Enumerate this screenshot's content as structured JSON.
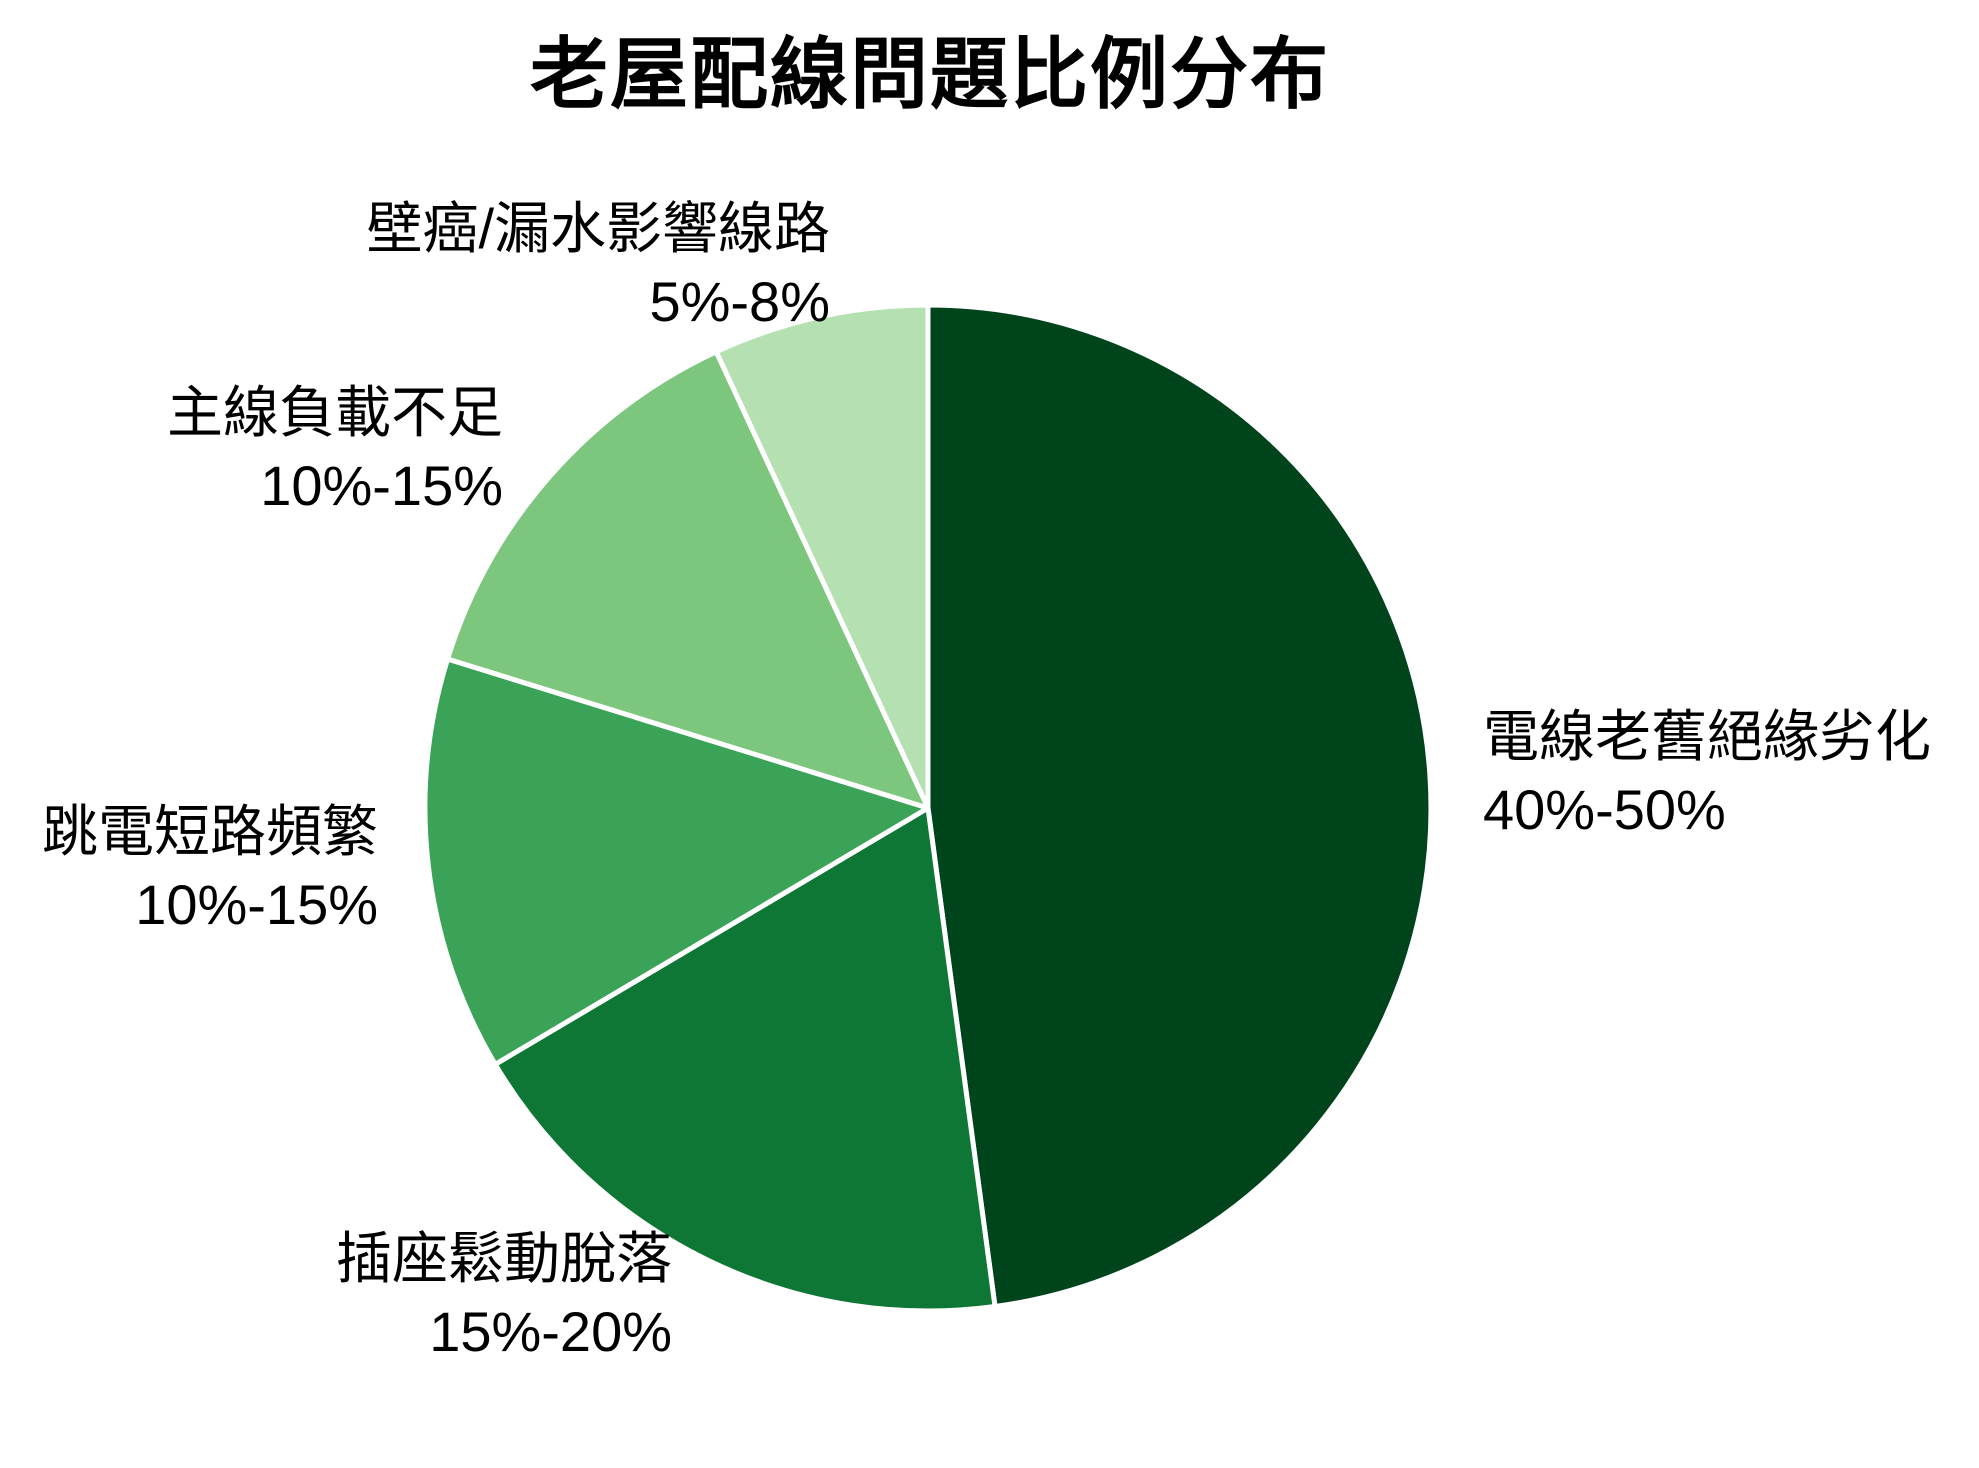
{
  "chart_data": {
    "type": "pie",
    "title": "老屋配線問題比例分布",
    "legend_position": "none",
    "label_style": "outside",
    "start_angle": "12-oclock",
    "direction": "clockwise",
    "background_color": "#ffffff",
    "divider_color": "#ffffff",
    "slices": [
      {
        "label": "電線老舊絕緣劣化",
        "range": "40%-50%",
        "value": 45,
        "color": "#00441C"
      },
      {
        "label": "插座鬆動脫落",
        "range": "15%-20%",
        "value": 17.5,
        "color": "#0E7735"
      },
      {
        "label": "跳電短路頻繁",
        "range": "10%-15%",
        "value": 12.5,
        "color": "#3BA358"
      },
      {
        "label": "主線負載不足",
        "range": "10%-15%",
        "value": 12.5,
        "color": "#7CC67D"
      },
      {
        "label": "壁癌/漏水影響線路",
        "range": "5%-8%",
        "value": 6.5,
        "color": "#B5E0B2"
      }
    ]
  }
}
